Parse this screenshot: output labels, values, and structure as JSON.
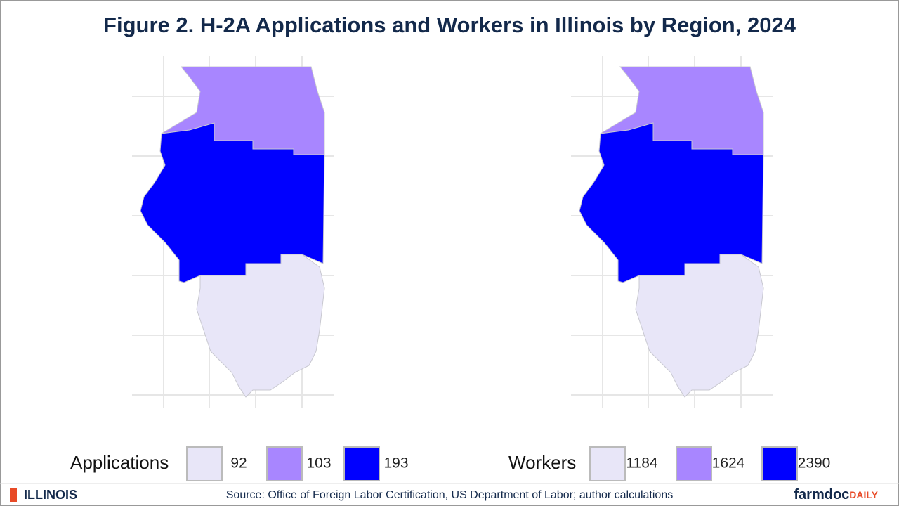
{
  "title": "Figure 2. H-2A Applications and Workers in Illinois by Region, 2024",
  "maps": [
    {
      "legend_title": "Applications",
      "values": [
        92,
        103,
        193
      ],
      "colors": [
        "#e8e6f8",
        "#a886ff",
        "#0000ff"
      ]
    },
    {
      "legend_title": "Workers",
      "values": [
        1184,
        1624,
        2390
      ],
      "colors": [
        "#e8e6f8",
        "#a886ff",
        "#0000ff"
      ]
    }
  ],
  "footer": {
    "logo": "ILLINOIS",
    "source": "Source: Office of Foreign Labor Certification, US Department of Labor; author calculations",
    "brand": "farmdoc",
    "brand_suffix": "DAILY"
  }
}
